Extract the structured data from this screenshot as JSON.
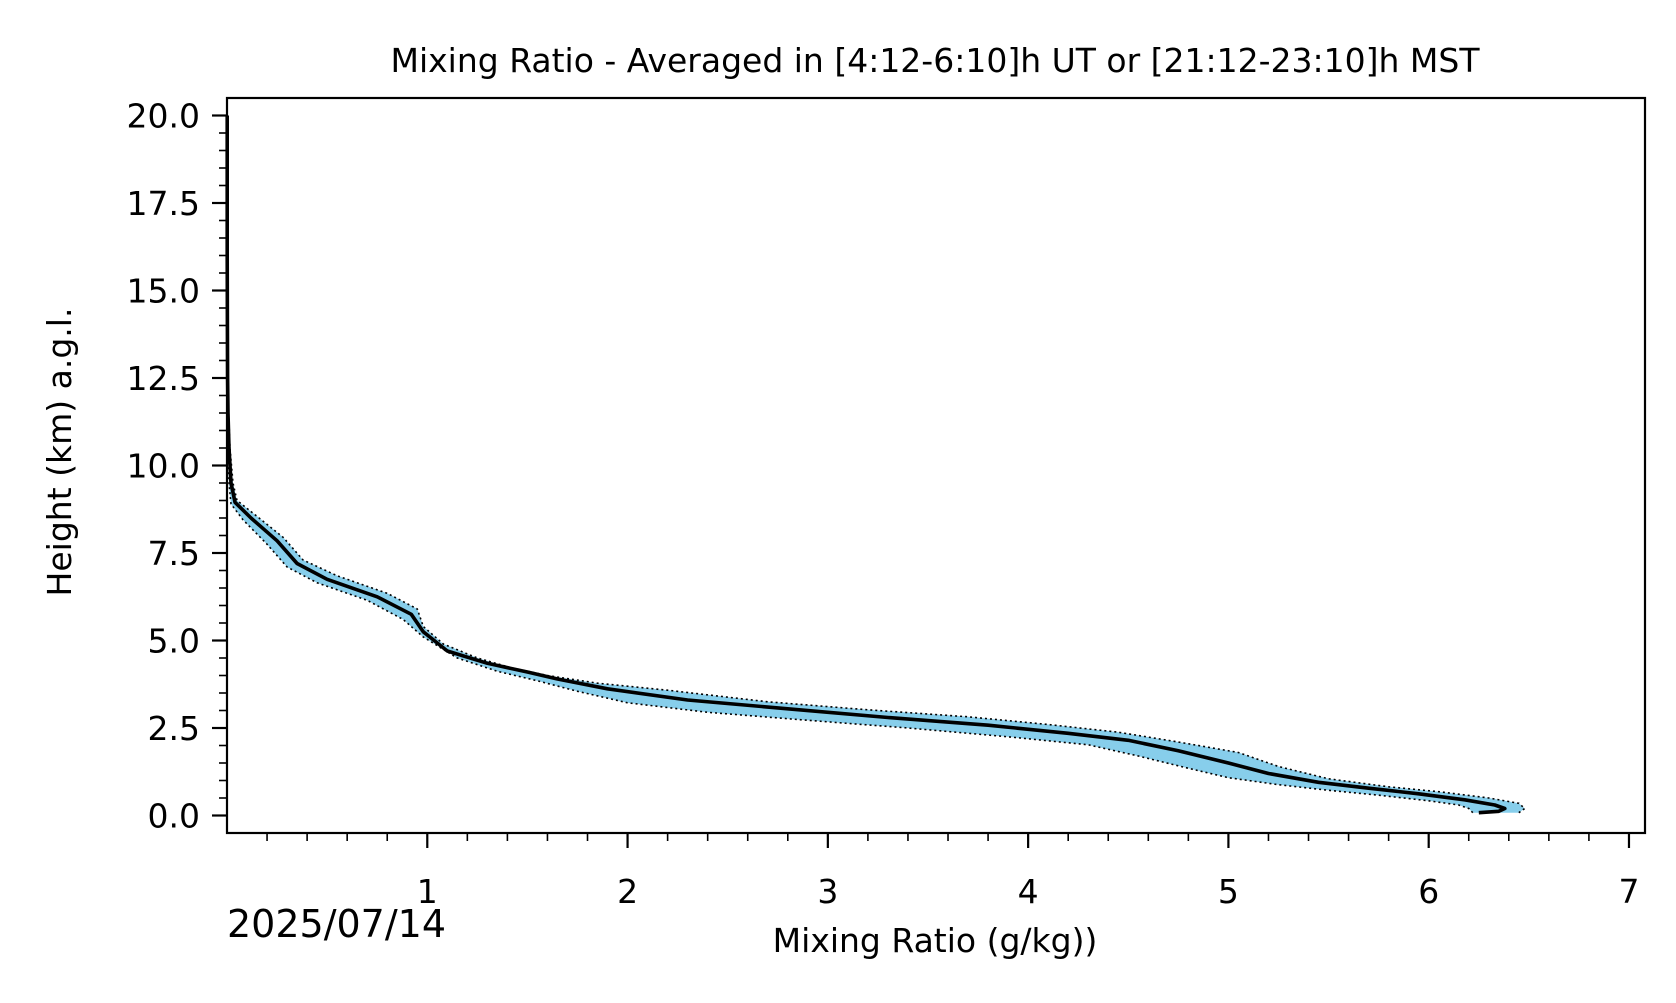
{
  "chart_data": {
    "type": "line",
    "title": "Mixing Ratio - Averaged in [4:12-6:10]h UT or [21:12-23:10]h MST",
    "xlabel": "Mixing Ratio (g/kg))",
    "ylabel": "Height (km) a.g.l.",
    "date_label": "2025/07/14",
    "xlim": [
      0.0,
      7.08
    ],
    "ylim": [
      -0.5,
      20.5
    ],
    "x_ticks": [
      {
        "value": 1,
        "label": "1"
      },
      {
        "value": 2,
        "label": "2"
      },
      {
        "value": 3,
        "label": "3"
      },
      {
        "value": 4,
        "label": "4"
      },
      {
        "value": 5,
        "label": "5"
      },
      {
        "value": 6,
        "label": "6"
      },
      {
        "value": 7,
        "label": "7"
      }
    ],
    "y_ticks": [
      {
        "value": 0.0,
        "label": "0.0"
      },
      {
        "value": 2.5,
        "label": "2.5"
      },
      {
        "value": 5.0,
        "label": "5.0"
      },
      {
        "value": 7.5,
        "label": "7.5"
      },
      {
        "value": 10.0,
        "label": "10.0"
      },
      {
        "value": 12.5,
        "label": "12.5"
      },
      {
        "value": 15.0,
        "label": "15.0"
      },
      {
        "value": 17.5,
        "label": "17.5"
      },
      {
        "value": 20.0,
        "label": "20.0"
      }
    ],
    "grid": false,
    "colors": {
      "line": "#000000",
      "band": "#87ceeb",
      "bound": "#000000"
    },
    "series": [
      {
        "role": "mean",
        "points": [
          [
            6.25,
            0.08
          ],
          [
            6.35,
            0.12
          ],
          [
            6.38,
            0.2
          ],
          [
            6.33,
            0.3
          ],
          [
            6.18,
            0.45
          ],
          [
            5.95,
            0.62
          ],
          [
            5.7,
            0.78
          ],
          [
            5.45,
            0.95
          ],
          [
            5.2,
            1.2
          ],
          [
            5.0,
            1.5
          ],
          [
            4.75,
            1.85
          ],
          [
            4.5,
            2.15
          ],
          [
            4.2,
            2.35
          ],
          [
            3.8,
            2.58
          ],
          [
            3.3,
            2.8
          ],
          [
            2.8,
            3.05
          ],
          [
            2.3,
            3.3
          ],
          [
            1.9,
            3.62
          ],
          [
            1.65,
            3.9
          ],
          [
            1.5,
            4.1
          ],
          [
            1.3,
            4.35
          ],
          [
            1.1,
            4.7
          ],
          [
            0.98,
            5.25
          ],
          [
            0.92,
            5.75
          ],
          [
            0.75,
            6.25
          ],
          [
            0.5,
            6.75
          ],
          [
            0.35,
            7.2
          ],
          [
            0.25,
            7.85
          ],
          [
            0.12,
            8.5
          ],
          [
            0.04,
            8.95
          ],
          [
            0.02,
            9.5
          ],
          [
            0.01,
            10.5
          ],
          [
            0.005,
            11.5
          ],
          [
            0.003,
            12.5
          ],
          [
            0.002,
            14.0
          ],
          [
            0.001,
            16.0
          ],
          [
            0.001,
            18.0
          ],
          [
            0.001,
            20.0
          ]
        ]
      },
      {
        "role": "upper_bound",
        "points": [
          [
            6.45,
            0.08
          ],
          [
            6.48,
            0.2
          ],
          [
            6.45,
            0.35
          ],
          [
            6.3,
            0.5
          ],
          [
            6.05,
            0.68
          ],
          [
            5.8,
            0.82
          ],
          [
            5.5,
            1.05
          ],
          [
            5.25,
            1.4
          ],
          [
            5.05,
            1.8
          ],
          [
            4.75,
            2.1
          ],
          [
            4.45,
            2.38
          ],
          [
            4.1,
            2.6
          ],
          [
            3.7,
            2.82
          ],
          [
            3.2,
            3.02
          ],
          [
            2.7,
            3.25
          ],
          [
            2.2,
            3.58
          ],
          [
            1.85,
            3.78
          ],
          [
            1.6,
            4.0
          ],
          [
            1.42,
            4.22
          ],
          [
            1.25,
            4.5
          ],
          [
            1.08,
            4.9
          ],
          [
            0.98,
            5.4
          ],
          [
            0.95,
            5.9
          ],
          [
            0.8,
            6.35
          ],
          [
            0.55,
            6.85
          ],
          [
            0.38,
            7.3
          ],
          [
            0.28,
            7.95
          ],
          [
            0.15,
            8.55
          ],
          [
            0.05,
            9.0
          ],
          [
            0.03,
            9.5
          ],
          [
            0.015,
            10.5
          ],
          [
            0.008,
            11.5
          ],
          [
            0.005,
            12.5
          ],
          [
            0.003,
            14.0
          ],
          [
            0.002,
            16.0
          ],
          [
            0.002,
            18.0
          ],
          [
            0.002,
            20.0
          ]
        ]
      },
      {
        "role": "lower_bound",
        "points": [
          [
            6.22,
            0.08
          ],
          [
            6.2,
            0.2
          ],
          [
            6.15,
            0.3
          ],
          [
            6.0,
            0.42
          ],
          [
            5.75,
            0.58
          ],
          [
            5.5,
            0.72
          ],
          [
            5.25,
            0.88
          ],
          [
            5.0,
            1.08
          ],
          [
            4.8,
            1.35
          ],
          [
            4.55,
            1.7
          ],
          [
            4.3,
            2.02
          ],
          [
            3.9,
            2.25
          ],
          [
            3.4,
            2.5
          ],
          [
            2.9,
            2.72
          ],
          [
            2.4,
            2.95
          ],
          [
            2.0,
            3.22
          ],
          [
            1.75,
            3.55
          ],
          [
            1.55,
            3.85
          ],
          [
            1.35,
            4.12
          ],
          [
            1.15,
            4.5
          ],
          [
            0.98,
            5.1
          ],
          [
            0.88,
            5.6
          ],
          [
            0.7,
            6.15
          ],
          [
            0.45,
            6.65
          ],
          [
            0.3,
            7.1
          ],
          [
            0.2,
            7.75
          ],
          [
            0.08,
            8.45
          ],
          [
            0.02,
            8.9
          ],
          [
            0.01,
            9.5
          ],
          [
            0.005,
            10.5
          ],
          [
            0.002,
            11.5
          ],
          [
            0.001,
            12.5
          ],
          [
            0.0,
            14.0
          ],
          [
            0.0,
            16.0
          ],
          [
            0.0,
            18.0
          ],
          [
            0.0,
            20.0
          ]
        ]
      }
    ]
  }
}
